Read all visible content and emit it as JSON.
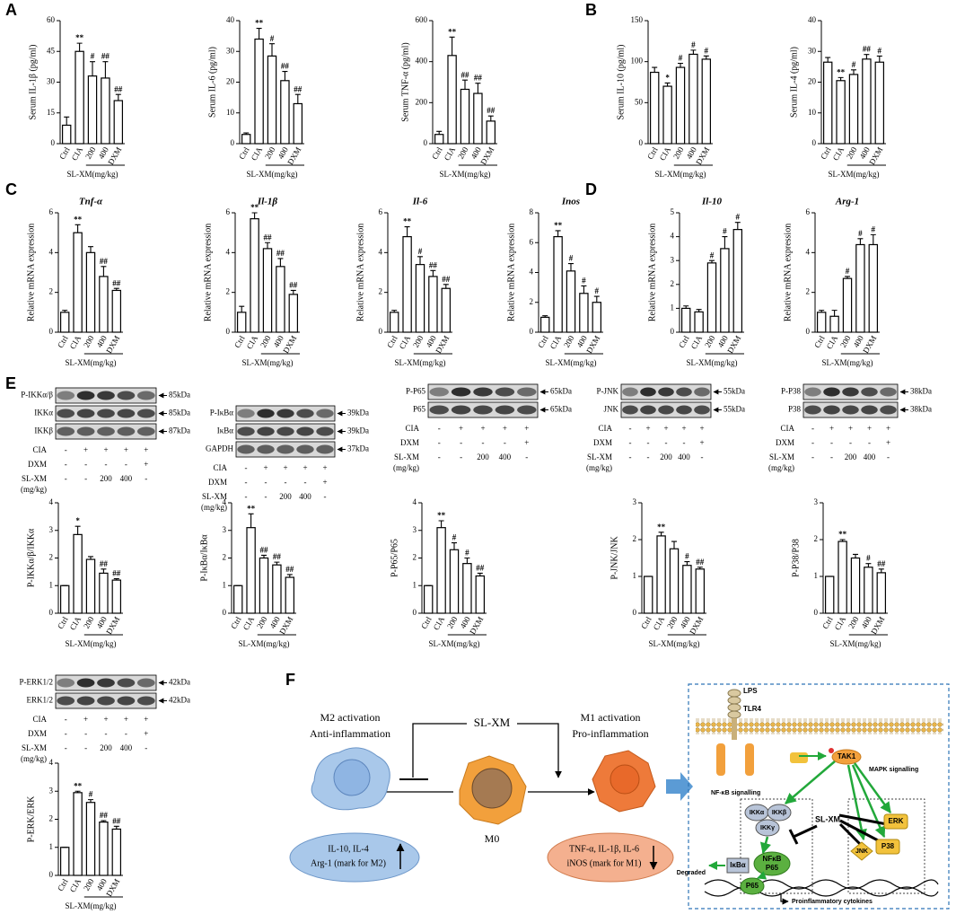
{
  "panel_labels": [
    "A",
    "B",
    "C",
    "D",
    "E",
    "F"
  ],
  "chart_data": [
    {
      "type": "bar",
      "ylabel": "Serum IL-1β (pg/ml)",
      "categories": [
        "Ctrl",
        "CIA",
        "200",
        "400",
        "DXM"
      ],
      "group_label": "SL-XM(mg/kg)",
      "values": [
        9,
        45,
        33,
        32,
        21
      ],
      "errors": [
        4,
        4,
        7,
        8,
        3
      ],
      "significance": [
        null,
        "**",
        "#",
        "##",
        "##"
      ],
      "ylim": [
        0,
        60
      ],
      "yticks": [
        0,
        15,
        30,
        45,
        60
      ],
      "color": "#ffffff"
    },
    {
      "type": "bar",
      "ylabel": "Serum IL-6 (pg/ml)",
      "categories": [
        "Ctrl",
        "CIA",
        "200",
        "400",
        "DXM"
      ],
      "group_label": "SL-XM(mg/kg)",
      "values": [
        3,
        34,
        28.5,
        20.5,
        13
      ],
      "errors": [
        0.5,
        3.5,
        4,
        3,
        3
      ],
      "significance": [
        null,
        "**",
        "#",
        "##",
        "##"
      ],
      "ylim": [
        0,
        40
      ],
      "yticks": [
        0,
        10,
        20,
        30,
        40
      ],
      "color": "#ffffff"
    },
    {
      "type": "bar",
      "ylabel": "Serum TNF-α (pg/ml)",
      "categories": [
        "Ctrl",
        "CIA",
        "200",
        "400",
        "DXM"
      ],
      "group_label": "SL-XM(mg/kg)",
      "values": [
        45,
        430,
        265,
        245,
        110
      ],
      "errors": [
        15,
        90,
        45,
        50,
        25
      ],
      "significance": [
        null,
        "**",
        "##",
        "##",
        "##"
      ],
      "ylim": [
        0,
        600
      ],
      "yticks": [
        0,
        200,
        400,
        600
      ],
      "color": "#ffffff"
    },
    {
      "type": "bar",
      "ylabel": "Serum IL-10 (pg/ml)",
      "categories": [
        "Ctrl",
        "CIA",
        "200",
        "400",
        "DXM"
      ],
      "group_label": "SL-XM(mg/kg)",
      "values": [
        87,
        70,
        93,
        109,
        103
      ],
      "errors": [
        6,
        4,
        5,
        5,
        4
      ],
      "significance": [
        null,
        "*",
        "#",
        "#",
        "#"
      ],
      "ylim": [
        0,
        150
      ],
      "yticks": [
        0,
        50,
        100,
        150
      ],
      "color": "#ffffff"
    },
    {
      "type": "bar",
      "ylabel": "Serum IL-4 (pg/ml)",
      "categories": [
        "Ctrl",
        "CIA",
        "200",
        "400",
        "DXM"
      ],
      "group_label": "SL-XM(mg/kg)",
      "values": [
        26.5,
        20.5,
        22.5,
        27.5,
        26.5
      ],
      "errors": [
        1.5,
        1,
        1.5,
        1.5,
        2
      ],
      "significance": [
        null,
        "**",
        "#",
        "##",
        "#"
      ],
      "ylim": [
        0,
        40
      ],
      "yticks": [
        0,
        10,
        20,
        30,
        40
      ],
      "color": "#ffffff"
    },
    {
      "type": "bar",
      "title": "Tnf-α",
      "ylabel": "Relative mRNA expression",
      "categories": [
        "Ctrl",
        "CIA",
        "200",
        "400",
        "DXM"
      ],
      "group_label": "SL-XM(mg/kg)",
      "values": [
        1,
        5,
        4,
        2.8,
        2.1
      ],
      "errors": [
        0.1,
        0.4,
        0.3,
        0.5,
        0.1
      ],
      "significance": [
        null,
        "**",
        null,
        "##",
        "##"
      ],
      "ylim": [
        0,
        6
      ],
      "yticks": [
        0,
        2,
        4,
        6
      ],
      "color": "#ffffff"
    },
    {
      "type": "bar",
      "title": "Il-1β",
      "ylabel": "Relative mRNA expression",
      "categories": [
        "Ctrl",
        "CIA",
        "200",
        "400",
        "DXM"
      ],
      "group_label": "SL-XM(mg/kg)",
      "values": [
        1,
        5.7,
        4.2,
        3.3,
        1.9
      ],
      "errors": [
        0.3,
        0.3,
        0.3,
        0.4,
        0.2
      ],
      "significance": [
        null,
        "**",
        "##",
        "##",
        "##"
      ],
      "ylim": [
        0,
        6
      ],
      "yticks": [
        0,
        2,
        4,
        6
      ],
      "color": "#ffffff"
    },
    {
      "type": "bar",
      "title": "Il-6",
      "ylabel": "Relative mRNA expression",
      "categories": [
        "Ctrl",
        "CIA",
        "200",
        "400",
        "DXM"
      ],
      "group_label": "SL-XM(mg/kg)",
      "values": [
        1,
        4.8,
        3.4,
        2.8,
        2.2
      ],
      "errors": [
        0.1,
        0.5,
        0.4,
        0.3,
        0.2
      ],
      "significance": [
        null,
        "**",
        "#",
        "##",
        "##"
      ],
      "ylim": [
        0,
        6
      ],
      "yticks": [
        0,
        2,
        4,
        6
      ],
      "color": "#ffffff"
    },
    {
      "type": "bar",
      "title": "Inos",
      "ylabel": "Relative mRNA expression",
      "categories": [
        "Ctrl",
        "CIA",
        "200",
        "400",
        "DXM"
      ],
      "group_label": "SL-XM(mg/kg)",
      "values": [
        1,
        6.4,
        4.1,
        2.6,
        2
      ],
      "errors": [
        0.1,
        0.4,
        0.5,
        0.5,
        0.4
      ],
      "significance": [
        null,
        "**",
        "#",
        "#",
        "#"
      ],
      "ylim": [
        0,
        8
      ],
      "yticks": [
        0,
        2,
        4,
        6,
        8
      ],
      "color": "#ffffff"
    },
    {
      "type": "bar",
      "title": "Il-10",
      "ylabel": "Relative mRNA expression",
      "categories": [
        "Ctrl",
        "CIA",
        "200",
        "400",
        "DXM"
      ],
      "group_label": "SL-XM(mg/kg)",
      "values": [
        1,
        0.85,
        2.9,
        3.5,
        4.3
      ],
      "errors": [
        0.1,
        0.1,
        0.1,
        0.5,
        0.3
      ],
      "significance": [
        null,
        null,
        "#",
        "#",
        "#"
      ],
      "ylim": [
        0,
        5
      ],
      "yticks": [
        0,
        1,
        2,
        3,
        4,
        5
      ],
      "color": "#ffffff"
    },
    {
      "type": "bar",
      "title": "Arg-1",
      "ylabel": "Relative mRNA expression",
      "categories": [
        "Ctrl",
        "CIA",
        "200",
        "400",
        "DXM"
      ],
      "group_label": "SL-XM(mg/kg)",
      "values": [
        1,
        0.8,
        2.7,
        4.4,
        4.4
      ],
      "errors": [
        0.1,
        0.3,
        0.1,
        0.3,
        0.5
      ],
      "significance": [
        null,
        null,
        "#",
        "#",
        "#"
      ],
      "ylim": [
        0,
        6
      ],
      "yticks": [
        0,
        2,
        4,
        6
      ],
      "color": "#ffffff"
    },
    {
      "type": "bar",
      "ylabel": "P-IKKα/β/IKKα",
      "categories": [
        "Ctrl",
        "CIA",
        "200",
        "400",
        "DXM"
      ],
      "group_label": "SL-XM(mg/kg)",
      "values": [
        1,
        2.85,
        1.95,
        1.45,
        1.2
      ],
      "errors": [
        0,
        0.3,
        0.1,
        0.15,
        0.05
      ],
      "significance": [
        null,
        "*",
        null,
        "##",
        "##"
      ],
      "ylim": [
        0,
        4
      ],
      "yticks": [
        0,
        1,
        2,
        3,
        4
      ],
      "color": "#ffffff"
    },
    {
      "type": "bar",
      "ylabel": "P-IκBα/IκBα",
      "categories": [
        "Ctrl",
        "CIA",
        "200",
        "400",
        "DXM"
      ],
      "group_label": "SL-XM(mg/kg)",
      "values": [
        1,
        3.1,
        2,
        1.75,
        1.3
      ],
      "errors": [
        0,
        0.5,
        0.1,
        0.1,
        0.1
      ],
      "significance": [
        null,
        "**",
        "##",
        "##",
        "##"
      ],
      "ylim": [
        0,
        4
      ],
      "yticks": [
        0,
        1,
        2,
        3,
        4
      ],
      "color": "#ffffff"
    },
    {
      "type": "bar",
      "ylabel": "P-P65/P65",
      "categories": [
        "Ctrl",
        "CIA",
        "200",
        "400",
        "DXM"
      ],
      "group_label": "SL-XM(mg/kg)",
      "values": [
        1,
        3.1,
        2.3,
        1.8,
        1.35
      ],
      "errors": [
        0,
        0.25,
        0.25,
        0.2,
        0.1
      ],
      "significance": [
        null,
        "**",
        "#",
        "#",
        "##"
      ],
      "ylim": [
        0,
        4
      ],
      "yticks": [
        0,
        1,
        2,
        3,
        4
      ],
      "color": "#ffffff"
    },
    {
      "type": "bar",
      "ylabel": "P-JNK/JNK",
      "categories": [
        "Ctrl",
        "CIA",
        "200",
        "400",
        "DXM"
      ],
      "group_label": "SL-XM(mg/kg)",
      "values": [
        1,
        2.1,
        1.75,
        1.3,
        1.2
      ],
      "errors": [
        0,
        0.1,
        0.2,
        0.1,
        0.05
      ],
      "significance": [
        null,
        "**",
        null,
        "#",
        "##"
      ],
      "ylim": [
        0,
        3
      ],
      "yticks": [
        0,
        1,
        2,
        3
      ],
      "color": "#ffffff"
    },
    {
      "type": "bar",
      "ylabel": "P-P38/P38",
      "categories": [
        "Ctrl",
        "CIA",
        "200",
        "400",
        "DXM"
      ],
      "group_label": "SL-XM(mg/kg)",
      "values": [
        1,
        1.95,
        1.5,
        1.25,
        1.1
      ],
      "errors": [
        0,
        0.05,
        0.1,
        0.1,
        0.1
      ],
      "significance": [
        null,
        "**",
        null,
        "#",
        "##"
      ],
      "ylim": [
        0,
        3
      ],
      "yticks": [
        0,
        1,
        2,
        3
      ],
      "color": "#ffffff"
    },
    {
      "type": "bar",
      "ylabel": "P-ERK/ERK",
      "categories": [
        "Ctrl",
        "CIA",
        "200",
        "400",
        "DXM"
      ],
      "group_label": "SL-XM(mg/kg)",
      "values": [
        1,
        2.95,
        2.6,
        1.9,
        1.65
      ],
      "errors": [
        0,
        0.05,
        0.1,
        0.05,
        0.1
      ],
      "significance": [
        null,
        "**",
        "#",
        "##",
        "##"
      ],
      "ylim": [
        0,
        4
      ],
      "yticks": [
        0,
        1,
        2,
        3,
        4
      ],
      "color": "#ffffff"
    }
  ],
  "blots": [
    {
      "rows": [
        {
          "label": "P-IKKα/β",
          "kda": "85kDa"
        },
        {
          "label": "IKKα",
          "kda": "85kDa"
        },
        {
          "label": "IKKβ",
          "kda": "87kDa"
        }
      ],
      "conditions": [
        {
          "name": "CIA",
          "signs": [
            "-",
            "+",
            "+",
            "+",
            "+"
          ]
        },
        {
          "name": "DXM",
          "signs": [
            "-",
            "-",
            "-",
            "-",
            "+"
          ]
        },
        {
          "name": "SL-XM",
          "unit": "(mg/kg)",
          "signs": [
            "-",
            "-",
            "200",
            "400",
            "-"
          ]
        }
      ]
    },
    {
      "rows": [
        {
          "label": "P-IκBα",
          "kda": "39kDa"
        },
        {
          "label": "IκBα",
          "kda": "39kDa"
        },
        {
          "label": "GAPDH",
          "kda": "37kDa"
        }
      ],
      "conditions": [
        {
          "name": "CIA",
          "signs": [
            "-",
            "+",
            "+",
            "+",
            "+"
          ]
        },
        {
          "name": "DXM",
          "signs": [
            "-",
            "-",
            "-",
            "-",
            "+"
          ]
        },
        {
          "name": "SL-XM",
          "unit": "(mg/kg)",
          "signs": [
            "-",
            "-",
            "200",
            "400",
            "-"
          ]
        }
      ]
    },
    {
      "rows": [
        {
          "label": "P-P65",
          "kda": "65kDa"
        },
        {
          "label": "P65",
          "kda": "65kDa"
        }
      ],
      "conditions": [
        {
          "name": "CIA",
          "signs": [
            "-",
            "+",
            "+",
            "+",
            "+"
          ]
        },
        {
          "name": "DXM",
          "signs": [
            "-",
            "-",
            "-",
            "-",
            "+"
          ]
        },
        {
          "name": "SL-XM",
          "unit": "(mg/kg)",
          "signs": [
            "-",
            "-",
            "200",
            "400",
            "-"
          ]
        }
      ]
    },
    {
      "rows": [
        {
          "label": "P-JNK",
          "kda": "55kDa"
        },
        {
          "label": "JNK",
          "kda": "55kDa"
        }
      ],
      "conditions": [
        {
          "name": "CIA",
          "signs": [
            "-",
            "+",
            "+",
            "+",
            "+"
          ]
        },
        {
          "name": "DXM",
          "signs": [
            "-",
            "-",
            "-",
            "-",
            "+"
          ]
        },
        {
          "name": "SL-XM",
          "unit": "(mg/kg)",
          "signs": [
            "-",
            "-",
            "200",
            "400",
            "-"
          ]
        }
      ]
    },
    {
      "rows": [
        {
          "label": "P-P38",
          "kda": "38kDa"
        },
        {
          "label": "P38",
          "kda": "38kDa"
        }
      ],
      "conditions": [
        {
          "name": "CIA",
          "signs": [
            "-",
            "+",
            "+",
            "+",
            "+"
          ]
        },
        {
          "name": "DXM",
          "signs": [
            "-",
            "-",
            "-",
            "-",
            "+"
          ]
        },
        {
          "name": "SL-XM",
          "unit": "(mg/kg)",
          "signs": [
            "-",
            "-",
            "200",
            "400",
            "-"
          ]
        }
      ]
    },
    {
      "rows": [
        {
          "label": "P-ERK1/2",
          "kda": "42kDa"
        },
        {
          "label": "ERK1/2",
          "kda": "42kDa"
        }
      ],
      "conditions": [
        {
          "name": "CIA",
          "signs": [
            "-",
            "+",
            "+",
            "+",
            "+"
          ]
        },
        {
          "name": "DXM",
          "signs": [
            "-",
            "-",
            "-",
            "-",
            "+"
          ]
        },
        {
          "name": "SL-XM",
          "unit": "(mg/kg)",
          "signs": [
            "-",
            "-",
            "200",
            "400",
            "-"
          ]
        }
      ]
    }
  ],
  "diagram": {
    "m2_title": "M2 activation",
    "m2_subtitle": "Anti-inflammation",
    "m2_markers": [
      "IL-10, IL-4",
      "Arg-1 (mark for M2)"
    ],
    "drug": "SL-XM",
    "m0": "M0",
    "m1_title": "M1 activation",
    "m1_subtitle": "Pro-inflammation",
    "m1_markers": [
      "TNF-α, IL-1β, IL-6",
      "iNOS (mark for M1)"
    ],
    "pathway": {
      "lps": "LPS",
      "receptor": "TLR4",
      "tak1": "TAK1",
      "nfkb_signalling": "NF-κB signalling",
      "mapk_signalling": "MAPK signalling",
      "ikk": [
        "IKKα",
        "IKKβ",
        "IKKγ"
      ],
      "drug": "SL-XM",
      "mapk": [
        "ERK",
        "JNK",
        "P38"
      ],
      "degraded": "Degraded",
      "ikba": "IκBα",
      "nfkb": [
        "NFκB",
        "P65"
      ],
      "p65": "P65",
      "output": "Proinflammatory cytokines"
    }
  }
}
